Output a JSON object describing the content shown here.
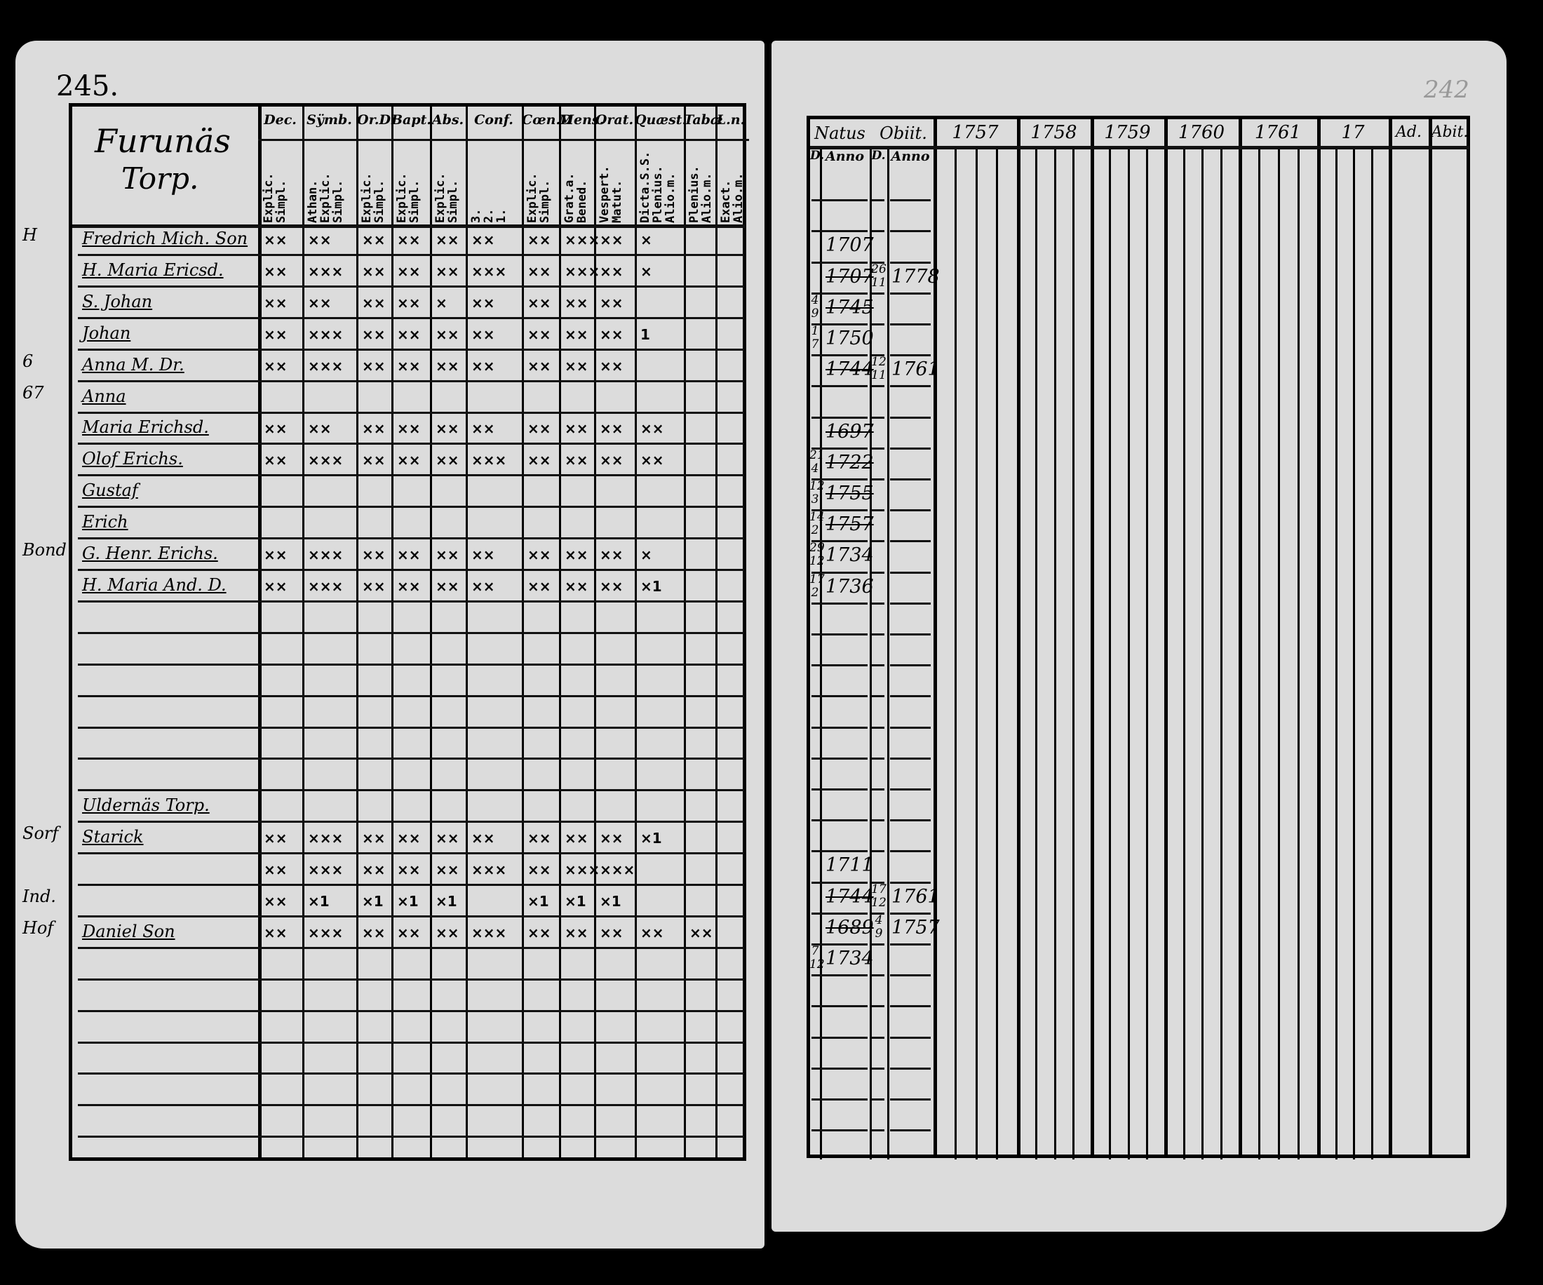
{
  "left_page": {
    "page_number": "245.",
    "section_title_line1": "Furunäs",
    "section_title_line2": "Torp.",
    "columns": [
      {
        "header": "Dec.",
        "sub": "Explic.\nSimpl."
      },
      {
        "header": "Sÿmb.",
        "sub": "Athan.\nExplic.\nSimpl."
      },
      {
        "header": "Or.D",
        "sub": "Explic.\nSimpl."
      },
      {
        "header": "Bapt.",
        "sub": "Explic.\nSimpl."
      },
      {
        "header": "Abs.",
        "sub": "Explic.\nSimpl."
      },
      {
        "header": "Conf.",
        "sub": "3.\n2.\n1."
      },
      {
        "header": "Cœn.D",
        "sub": "Explic.\nSimpl."
      },
      {
        "header": "Mens.",
        "sub": "Grat.a.\nBened."
      },
      {
        "header": "Orat.",
        "sub": "Vespert.\nMatut."
      },
      {
        "header": "Quæst.",
        "sub": "Dicta.S.S.\nPlenius.\nAlio.m."
      },
      {
        "header": "Tabæ",
        "sub": "Plenius.\nAlio.m."
      },
      {
        "header": "L.n.",
        "sub": "Exact.\nAlio.m."
      }
    ],
    "rows": [
      {
        "row": 0,
        "margin": "H",
        "name": "Fredrich Mich. Son",
        "marks": [
          "××",
          "××",
          "××",
          "××",
          "××",
          "××",
          "××",
          "×××",
          "××",
          "×",
          "",
          ""
        ]
      },
      {
        "row": 1,
        "margin": "",
        "name": "H. Maria Ericsd.",
        "marks": [
          "××",
          "×××",
          "××",
          "××",
          "××",
          "×××",
          "××",
          "×××",
          "××",
          "×",
          "",
          ""
        ]
      },
      {
        "row": 2,
        "margin": "",
        "name": "S. Johan",
        "marks": [
          "××",
          "××",
          "××",
          "××",
          "×",
          "××",
          "××",
          "××",
          "××",
          "",
          "",
          ""
        ]
      },
      {
        "row": 3,
        "margin": "",
        "name": "Johan",
        "marks": [
          "××",
          "×××",
          "××",
          "××",
          "××",
          "××",
          "××",
          "××",
          "××",
          "1",
          "",
          ""
        ]
      },
      {
        "row": 4,
        "margin": "6",
        "name": "Anna M. Dr.",
        "marks": [
          "××",
          "×××",
          "××",
          "××",
          "××",
          "××",
          "××",
          "××",
          "××",
          "",
          "",
          ""
        ]
      },
      {
        "row": 5,
        "margin": "67",
        "name": "Anna",
        "marks": [
          "",
          "",
          "",
          "",
          "",
          "",
          "",
          "",
          "",
          "",
          "",
          ""
        ]
      },
      {
        "row": 6,
        "margin": "",
        "name": "Maria Erichsd.",
        "marks": [
          "××",
          "××",
          "××",
          "××",
          "××",
          "××",
          "××",
          "××",
          "××",
          "××",
          "",
          ""
        ]
      },
      {
        "row": 7,
        "margin": "",
        "name": "Olof Erichs.",
        "marks": [
          "××",
          "×××",
          "××",
          "××",
          "××",
          "×××",
          "××",
          "××",
          "××",
          "××",
          "",
          ""
        ]
      },
      {
        "row": 8,
        "margin": "",
        "name": "Gustaf",
        "marks": [
          "",
          "",
          "",
          "",
          "",
          "",
          "",
          "",
          "",
          "",
          "",
          ""
        ]
      },
      {
        "row": 9,
        "margin": "",
        "name": "Erich",
        "marks": [
          "",
          "",
          "",
          "",
          "",
          "",
          "",
          "",
          "",
          "",
          "",
          ""
        ]
      },
      {
        "row": 10,
        "margin": "Bond",
        "name": "G. Henr. Erichs.",
        "marks": [
          "××",
          "×××",
          "××",
          "××",
          "××",
          "××",
          "××",
          "××",
          "××",
          "×",
          "",
          ""
        ]
      },
      {
        "row": 11,
        "margin": "",
        "name": "H. Maria And. D.",
        "marks": [
          "××",
          "×××",
          "××",
          "××",
          "××",
          "××",
          "××",
          "××",
          "××",
          "×1",
          "",
          ""
        ]
      },
      {
        "row": 18,
        "margin": "",
        "name": "Uldernäs Torp.",
        "marks": [
          "",
          "",
          "",
          "",
          "",
          "",
          "",
          "",
          "",
          "",
          "",
          ""
        ]
      },
      {
        "row": 19,
        "margin": "Sorf",
        "name": "Starick",
        "marks": [
          "××",
          "×××",
          "××",
          "××",
          "××",
          "××",
          "××",
          "××",
          "××",
          "×1",
          "",
          ""
        ]
      },
      {
        "row": 20,
        "margin": "",
        "name": "",
        "marks": [
          "××",
          "×××",
          "××",
          "××",
          "××",
          "×××",
          "××",
          "×××",
          "×××",
          "",
          "",
          ""
        ]
      },
      {
        "row": 21,
        "margin": "Ind.",
        "name": "",
        "marks": [
          "××",
          "×1",
          "×1",
          "×1",
          "×1",
          "",
          "×1",
          "×1",
          "×1",
          "",
          "",
          ""
        ]
      },
      {
        "row": 22,
        "margin": "Hof",
        "name": "Daniel Son",
        "marks": [
          "××",
          "×××",
          "××",
          "××",
          "××",
          "×××",
          "××",
          "××",
          "××",
          "××",
          "××",
          ""
        ]
      }
    ]
  },
  "right_page": {
    "page_number": "242",
    "headers": {
      "natus": "Natus",
      "obiit": "Obiit.",
      "d": "D.",
      "anno": "Anno",
      "ad": "Ad.",
      "abit": "Abit."
    },
    "years": [
      "1757",
      "1758",
      "1759",
      "1760",
      "1761",
      "17"
    ],
    "rows": [
      {
        "row": 2,
        "birth_d": "",
        "birth_anno": "1707",
        "death_d": "",
        "death_anno": "",
        "struck": false
      },
      {
        "row": 3,
        "birth_d": "",
        "birth_anno": "1707",
        "death_d": "26/11",
        "death_anno": "1778",
        "struck": true
      },
      {
        "row": 4,
        "birth_d": "4/9",
        "birth_anno": "1745",
        "death_d": "",
        "death_anno": "",
        "struck": true
      },
      {
        "row": 5,
        "birth_d": "1/7",
        "birth_anno": "1750",
        "death_d": "",
        "death_anno": "",
        "struck": false
      },
      {
        "row": 6,
        "birth_d": "",
        "birth_anno": "1744",
        "death_d": "12/11",
        "death_anno": "1761",
        "struck": true
      },
      {
        "row": 8,
        "birth_d": "",
        "birth_anno": "1697",
        "death_d": "",
        "death_anno": "",
        "struck": true
      },
      {
        "row": 9,
        "birth_d": "21/4",
        "birth_anno": "1722",
        "death_d": "",
        "death_anno": "",
        "struck": true
      },
      {
        "row": 10,
        "birth_d": "12/3",
        "birth_anno": "1755",
        "death_d": "",
        "death_anno": "",
        "struck": true
      },
      {
        "row": 11,
        "birth_d": "14/2",
        "birth_anno": "1757",
        "death_d": "",
        "death_anno": "",
        "struck": true
      },
      {
        "row": 12,
        "birth_d": "29/12",
        "birth_anno": "1734",
        "death_d": "",
        "death_anno": "",
        "struck": false
      },
      {
        "row": 13,
        "birth_d": "17/2",
        "birth_anno": "1736",
        "death_d": "",
        "death_anno": "",
        "struck": false
      },
      {
        "row": 22,
        "birth_d": "",
        "birth_anno": "1711",
        "death_d": "",
        "death_anno": "",
        "struck": false
      },
      {
        "row": 23,
        "birth_d": "",
        "birth_anno": "1744",
        "death_d": "17/12",
        "death_anno": "1761",
        "struck": true
      },
      {
        "row": 24,
        "birth_d": "",
        "birth_anno": "1689",
        "death_d": "4/9",
        "death_anno": "1757",
        "struck": true
      },
      {
        "row": 25,
        "birth_d": "7/12",
        "birth_anno": "1734",
        "death_d": "",
        "death_anno": "",
        "struck": false
      }
    ]
  },
  "colors": {
    "paper": "#dcdcdc",
    "ink": "#000000",
    "background": "#000000"
  }
}
